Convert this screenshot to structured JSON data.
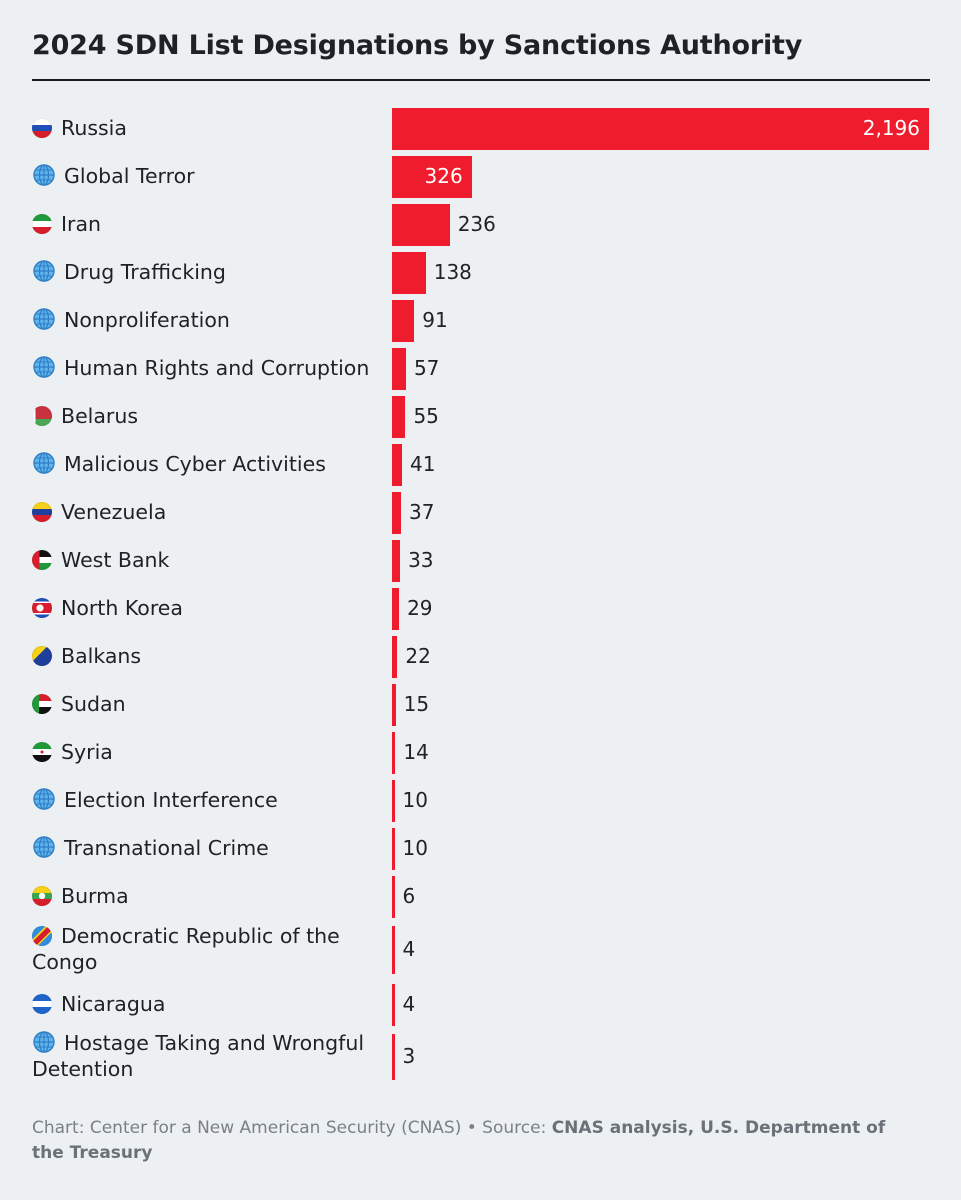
{
  "title": "2024 SDN List Designations by Sanctions Authority",
  "colors": {
    "bar": "#ee1c2c",
    "background": "#edf0f3",
    "text": "#1e2125"
  },
  "chart_data": {
    "type": "bar",
    "orientation": "horizontal",
    "title": "2024 SDN List Designations by Sanctions Authority",
    "categories": [
      "Russia",
      "Global Terror",
      "Iran",
      "Drug Trafficking",
      "Nonproliferation",
      "Human Rights and Corruption",
      "Belarus",
      "Malicious Cyber Activities",
      "Venezuela",
      "West Bank",
      "North Korea",
      "Balkans",
      "Sudan",
      "Syria",
      "Election Interference",
      "Transnational Crime",
      "Burma",
      "Democratic Republic of the Congo",
      "Nicaragua",
      "Hostage Taking and Wrongful Detention"
    ],
    "values": [
      2196,
      326,
      236,
      138,
      91,
      57,
      55,
      41,
      37,
      33,
      29,
      22,
      15,
      14,
      10,
      10,
      6,
      4,
      4,
      3
    ],
    "value_labels": [
      "2,196",
      "326",
      "236",
      "138",
      "91",
      "57",
      "55",
      "41",
      "37",
      "33",
      "29",
      "22",
      "15",
      "14",
      "10",
      "10",
      "6",
      "4",
      "4",
      "3"
    ],
    "icons": [
      "flag-russia",
      "globe-icon",
      "flag-iran",
      "globe-icon",
      "globe-icon",
      "globe-icon",
      "flag-belarus",
      "globe-icon",
      "flag-venezuela",
      "flag-palestine",
      "flag-north-korea",
      "flag-bosnia",
      "flag-sudan",
      "flag-syria",
      "globe-icon",
      "globe-icon",
      "flag-burma",
      "flag-drc",
      "flag-nicaragua",
      "globe-icon"
    ],
    "xlim": [
      0,
      2196
    ],
    "grid": false,
    "legend": "none"
  },
  "footer": {
    "prefix": "Chart: Center for a New American Security (CNAS) • Source: ",
    "source": "CNAS analysis, U.S. Department of the Treasury"
  }
}
